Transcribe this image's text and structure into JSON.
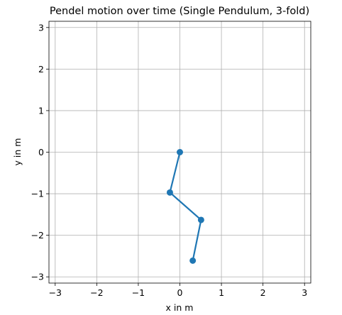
{
  "chart_data": {
    "type": "line",
    "title": "Pendel motion over time (Single Pendulum, 3-fold)",
    "xlabel": "x in m",
    "ylabel": "y in m",
    "xlim": [
      -3.15,
      3.15
    ],
    "ylim": [
      -3.15,
      3.15
    ],
    "xticks": [
      -3,
      -2,
      -1,
      0,
      1,
      2,
      3
    ],
    "yticks": [
      -3,
      -2,
      -1,
      0,
      1,
      2,
      3
    ],
    "grid": true,
    "series": [
      {
        "color": "#1f77b4",
        "marker": "circle",
        "x": [
          0.0,
          -0.24,
          0.51,
          0.31
        ],
        "y": [
          0.0,
          -0.97,
          -1.63,
          -2.61
        ]
      }
    ]
  }
}
